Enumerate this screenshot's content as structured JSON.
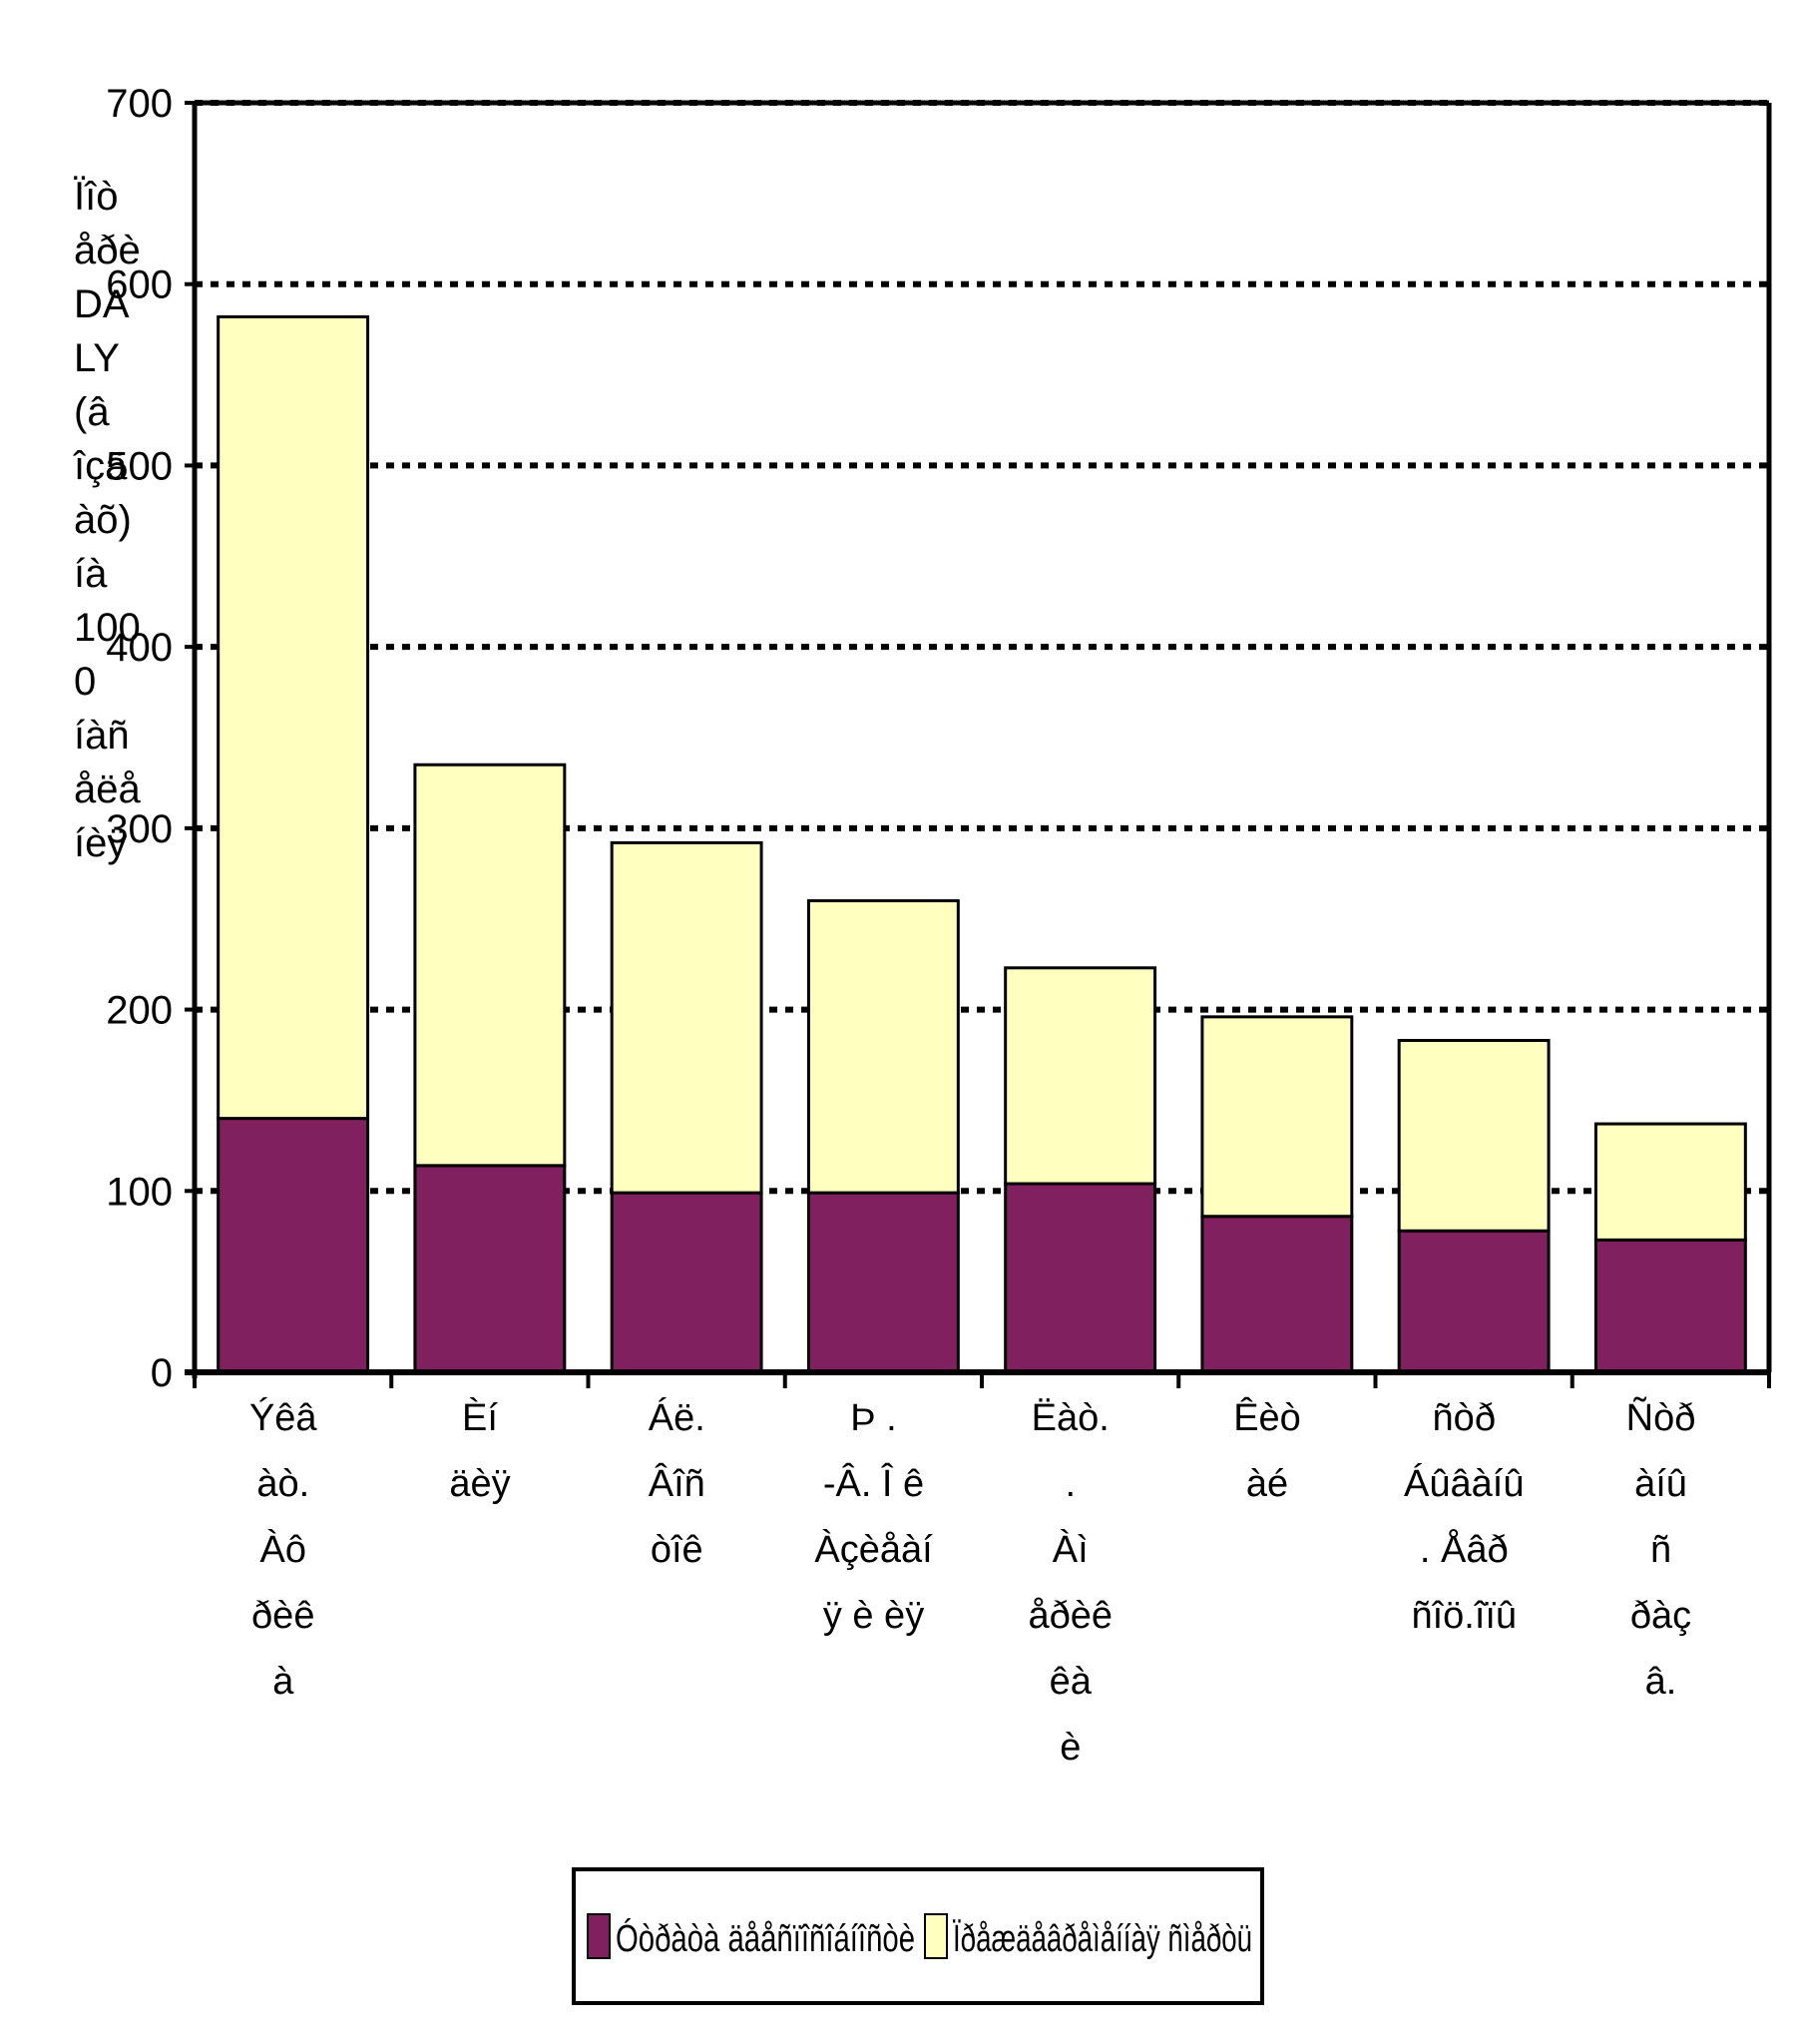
{
  "chart_data": {
    "type": "bar",
    "stacked": true,
    "ylabel": "Ïîòåðè DALY (âîçðàñò) íà 1000 íàñåëåíèÿ",
    "ylabel_lines": [
      "Ïîò",
      "åðè",
      "DA",
      "LY",
      "(â",
      "îçä",
      "àõ)",
      "íà",
      "100",
      "0",
      "íàñ",
      "åëå",
      "íèÿ"
    ],
    "ylim": [
      0,
      700
    ],
    "yticks": [
      0,
      100,
      200,
      300,
      400,
      500,
      600,
      700
    ],
    "grid": true,
    "legend_position": "bottom",
    "categories": [
      "Ýêâ àò. Àô ðèê à",
      "Èí äèÿ",
      "Áë. Âîñ òîê",
      "Þ. -Â. Î ê Àçèÿ åàí",
      "Ëàò. Àì åðèê à",
      "Êèò àé",
      "ñòð Áûâ. àíû Åâð ñîö.îïû",
      "Ñòð àíû ñ ðàç â."
    ],
    "category_lines": [
      [
        "Ýêâ",
        "àò.",
        "Àô",
        "ðèê",
        "à"
      ],
      [
        "Èí",
        "äèÿ"
      ],
      [
        "Áë.",
        "Âîñ",
        "òîê"
      ],
      [
        "Þ .",
        "-Â. Î ê",
        "Àçèåàí",
        "ÿ è èÿ"
      ],
      [
        "Ëàò.",
        ".",
        "Àì",
        "åðèê",
        "êà",
        "è"
      ],
      [
        "Êèò",
        "àé"
      ],
      [
        "ñòð",
        "Áûâàíû",
        ".      Åâð",
        "ñîö.îïû"
      ],
      [
        "Ñòð",
        "àíû",
        "ñ",
        "ðàç",
        "â."
      ]
    ],
    "series": [
      {
        "name": "Óòðàòà äååñïîñîáíîñòè",
        "color": "#81205f",
        "values": [
          140,
          114,
          99,
          99,
          104,
          86,
          78,
          73
        ]
      },
      {
        "name": "Ïðåæäåâðåìåííàÿ ñìåðòü",
        "color": "#ffffc0",
        "values": [
          442,
          221,
          193,
          161,
          119,
          110,
          105,
          64
        ]
      }
    ]
  }
}
